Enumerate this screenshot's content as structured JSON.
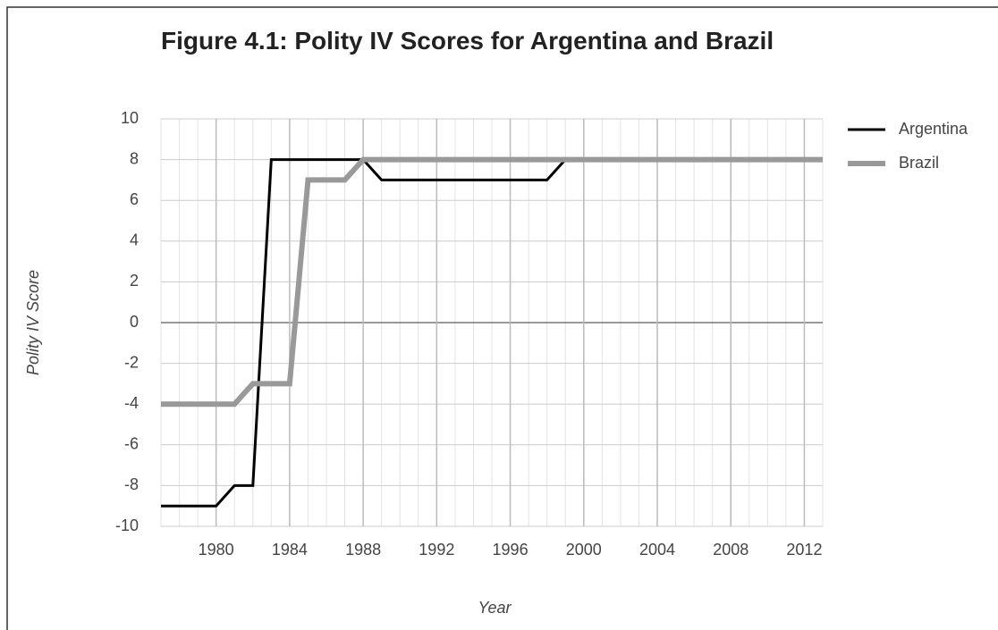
{
  "chart_data": {
    "type": "line",
    "title": "Figure 4.1: Polity IV Scores for Argentina and Brazil",
    "x_label": "Year",
    "y_label": "Polity IV Score",
    "x": [
      1977,
      1978,
      1979,
      1980,
      1981,
      1982,
      1983,
      1984,
      1985,
      1986,
      1987,
      1988,
      1989,
      1990,
      1991,
      1992,
      1993,
      1994,
      1995,
      1996,
      1997,
      1998,
      1999,
      2000,
      2001,
      2002,
      2003,
      2004,
      2005,
      2006,
      2007,
      2008,
      2009,
      2010,
      2011,
      2012,
      2013
    ],
    "series": [
      {
        "name": "Argentina",
        "color": "#000000",
        "values": [
          -9,
          -9,
          -9,
          -9,
          -8,
          -8,
          8,
          8,
          8,
          8,
          8,
          8,
          7,
          7,
          7,
          7,
          7,
          7,
          7,
          7,
          7,
          7,
          8,
          8,
          8,
          8,
          8,
          8,
          8,
          8,
          8,
          8,
          8,
          8,
          8,
          8,
          8
        ]
      },
      {
        "name": "Brazil",
        "color": "#999999",
        "values": [
          -4,
          -4,
          -4,
          -4,
          -4,
          -3,
          -3,
          -3,
          7,
          7,
          7,
          8,
          8,
          8,
          8,
          8,
          8,
          8,
          8,
          8,
          8,
          8,
          8,
          8,
          8,
          8,
          8,
          8,
          8,
          8,
          8,
          8,
          8,
          8,
          8,
          8,
          8
        ]
      }
    ],
    "xlim": [
      1977,
      2013
    ],
    "xticks": [
      1980,
      1984,
      1988,
      1992,
      1996,
      2000,
      2004,
      2008,
      2012
    ],
    "ylim": [
      -10,
      10
    ],
    "yticks": [
      10,
      8,
      6,
      4,
      2,
      0,
      -2,
      -4,
      -6,
      -8,
      -10
    ],
    "grid": true,
    "legend": "right"
  }
}
